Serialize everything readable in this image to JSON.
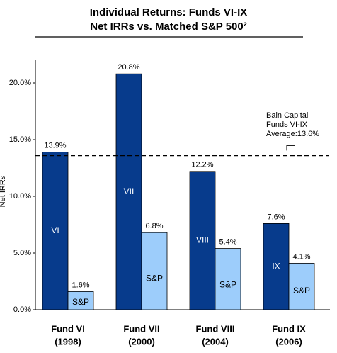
{
  "chart_data": {
    "type": "bar",
    "title": "Individual Returns: Funds VI-IX",
    "subtitle": "Net IRRs vs. Matched S&P 500²",
    "y_label": "Net IRRs",
    "categories": [
      "Fund VI",
      "Fund VII",
      "Fund VIII",
      "Fund IX"
    ],
    "category_years": [
      "(1998)",
      "(2000)",
      "(2004)",
      "(2006)"
    ],
    "series": [
      {
        "color": "#073b8c",
        "values": [
          13.9,
          20.8,
          12.2,
          7.6
        ],
        "value_labels": [
          "13.9%",
          "20.8%",
          "12.2%",
          "7.6%"
        ],
        "bar_labels": [
          "VI",
          "VII",
          "VIII",
          "IX"
        ]
      },
      {
        "color": "#9dcdfb",
        "values": [
          1.6,
          6.8,
          5.4,
          4.1
        ],
        "value_labels": [
          "1.6%",
          "6.8%",
          "5.4%",
          "4.1%"
        ],
        "bar_labels": [
          "S&P",
          "S&P",
          "S&P",
          "S&P"
        ]
      }
    ],
    "ylim": [
      0,
      22
    ],
    "yticks": [
      {
        "value": 0,
        "label": "0.0%"
      },
      {
        "value": 5,
        "label": "5.0%"
      },
      {
        "value": 10,
        "label": "10.0%"
      },
      {
        "value": 15,
        "label": "15.0%"
      },
      {
        "value": 20,
        "label": "20.0%"
      }
    ],
    "reference_line": {
      "value": 13.6,
      "label_lines": [
        "Bain Capital",
        "Funds VI-IX",
        "Average:13.6%"
      ]
    }
  }
}
